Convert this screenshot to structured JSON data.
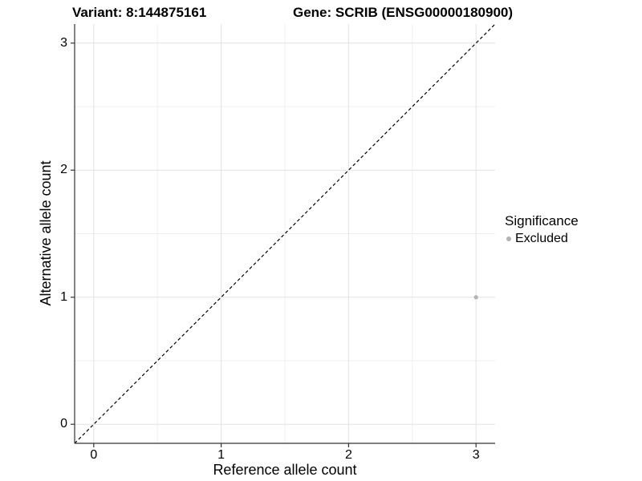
{
  "titles": {
    "left": "Variant: 8:144875161",
    "right": "Gene: SCRIB (ENSG00000180900)"
  },
  "chart_data": {
    "type": "scatter",
    "title": "Variant: 8:144875161  |  Gene: SCRIB (ENSG00000180900)",
    "xlabel": "Reference allele count",
    "ylabel": "Alternative allele count",
    "xlim": [
      -0.15,
      3.15
    ],
    "ylim": [
      -0.15,
      3.15
    ],
    "x_ticks": [
      0,
      1,
      2,
      3
    ],
    "y_ticks": [
      0,
      1,
      2,
      3
    ],
    "x_tick_labels": [
      "0",
      "1",
      "2",
      "3"
    ],
    "y_tick_labels": [
      "0",
      "1",
      "2",
      "3"
    ],
    "x_minor_ticks": [
      0.5,
      1.5,
      2.5
    ],
    "y_minor_ticks": [
      0.5,
      1.5,
      2.5
    ],
    "grid": "major and minor, light gray on white",
    "series": [
      {
        "name": "Excluded",
        "marker": "circle",
        "color": "#b3b3b3",
        "points": [
          {
            "x": 3,
            "y": 1
          }
        ]
      }
    ],
    "reference_line": {
      "type": "identity y=x",
      "style": "dashed",
      "color": "#000000",
      "span": "panel corner to corner"
    },
    "legend": {
      "title": "Significance",
      "position": "right",
      "items": [
        {
          "label": "Excluded",
          "color": "#b3b3b3",
          "marker": "circle"
        }
      ]
    }
  },
  "colors": {
    "background": "#ffffff",
    "grid_major": "#e2e2e2",
    "grid_minor": "#efefef",
    "axis_line": "#333333",
    "tick_mark": "#333333",
    "text": "#000000",
    "point": "#b3b3b3",
    "dashed_line": "#000000"
  }
}
